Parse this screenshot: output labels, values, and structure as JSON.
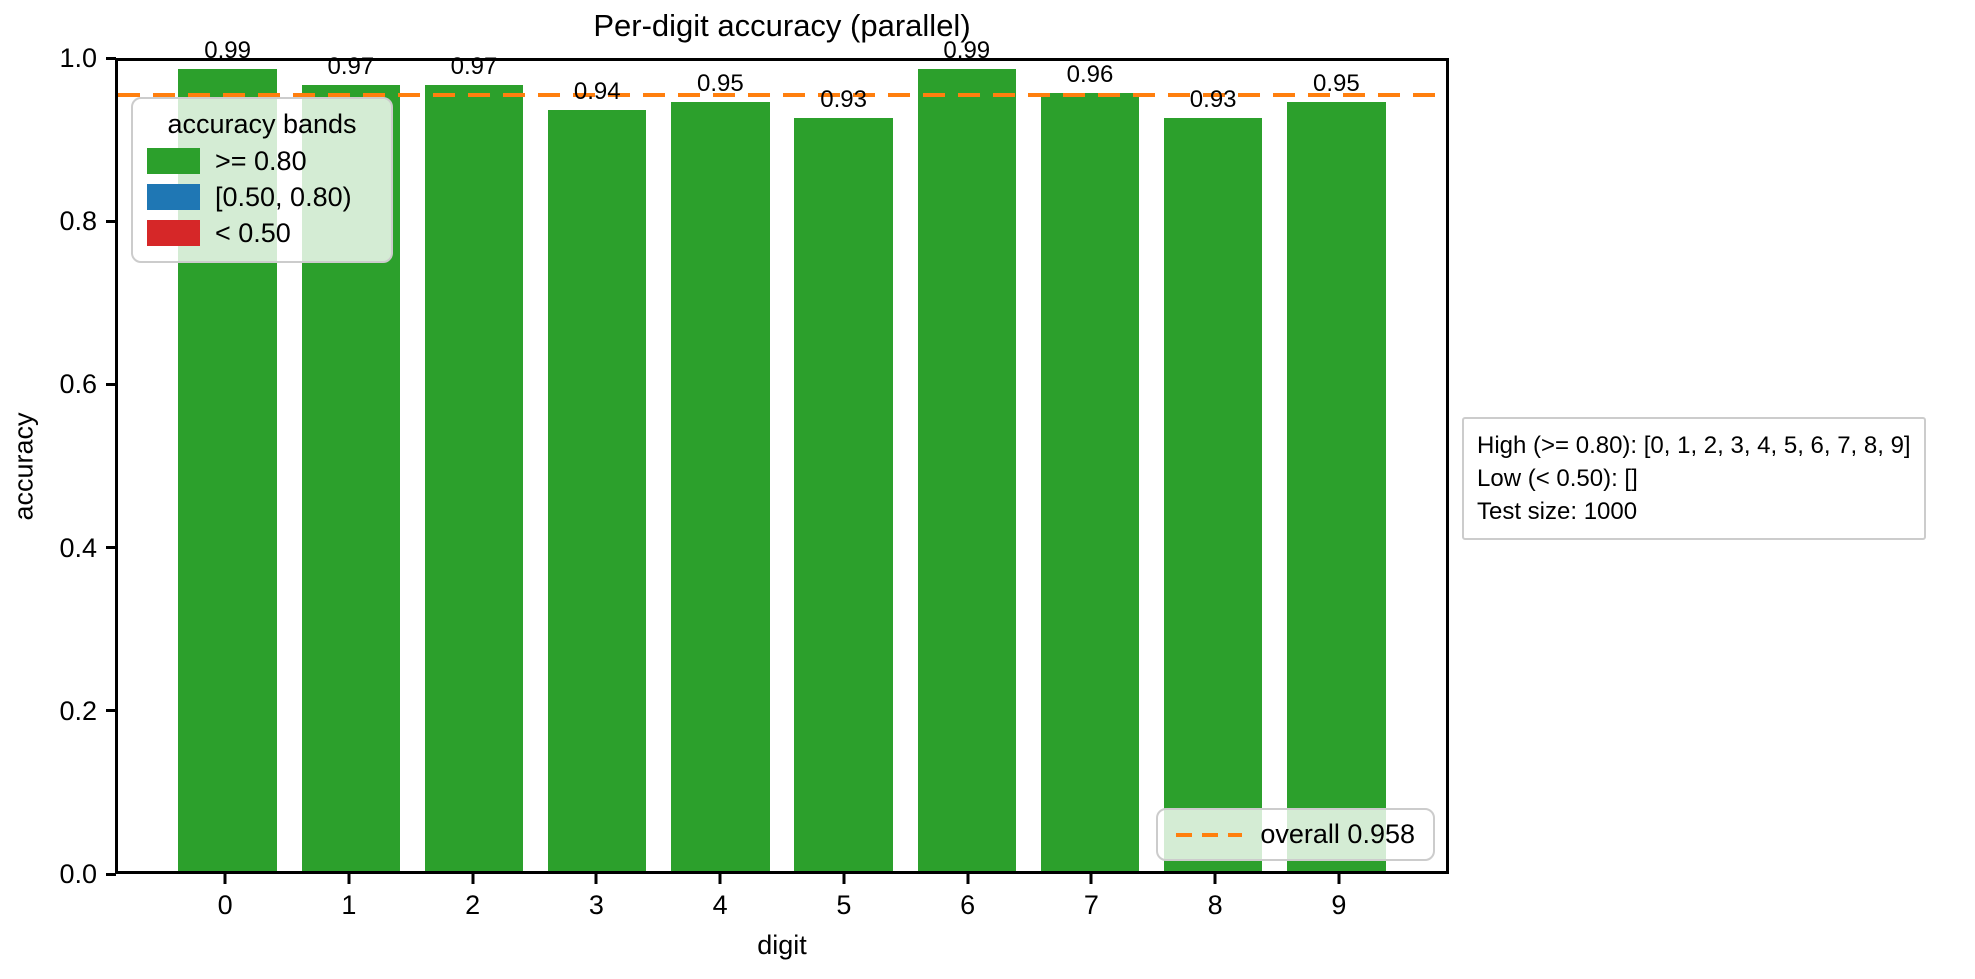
{
  "chart_data": {
    "type": "bar",
    "title": "Per-digit accuracy (parallel)",
    "xlabel": "digit",
    "ylabel": "accuracy",
    "categories": [
      "0",
      "1",
      "2",
      "3",
      "4",
      "5",
      "6",
      "7",
      "8",
      "9"
    ],
    "values": [
      0.99,
      0.97,
      0.97,
      0.94,
      0.95,
      0.93,
      0.99,
      0.96,
      0.93,
      0.95
    ],
    "bar_labels": [
      "0.99",
      "0.97",
      "0.97",
      "0.94",
      "0.95",
      "0.93",
      "0.99",
      "0.96",
      "0.93",
      "0.95"
    ],
    "bar_color": "#2ca02c",
    "ylim": [
      0.0,
      1.0
    ],
    "yticks": [
      0.0,
      0.2,
      0.4,
      0.6,
      0.8,
      1.0
    ],
    "ytick_labels": [
      "0.0",
      "0.2",
      "0.4",
      "0.6",
      "0.8",
      "1.0"
    ],
    "grid": false,
    "overall_line": {
      "value": 0.958,
      "color": "#ff7f0e",
      "style": "dashed"
    }
  },
  "legend_bands": {
    "title": "accuracy bands",
    "entries": [
      {
        "label": ">= 0.80",
        "color": "#2ca02c"
      },
      {
        "label": "[0.50, 0.80)",
        "color": "#1f77b4"
      },
      {
        "label": "< 0.50",
        "color": "#d62728"
      }
    ]
  },
  "legend_overall": {
    "label": "overall 0.958",
    "line_color": "#ff7f0e"
  },
  "annotation_box": {
    "lines": [
      "High (>= 0.80): [0, 1, 2, 3, 4, 5, 6, 7, 8, 9]",
      "Low (< 0.50): []",
      "Test size: 1000"
    ]
  }
}
